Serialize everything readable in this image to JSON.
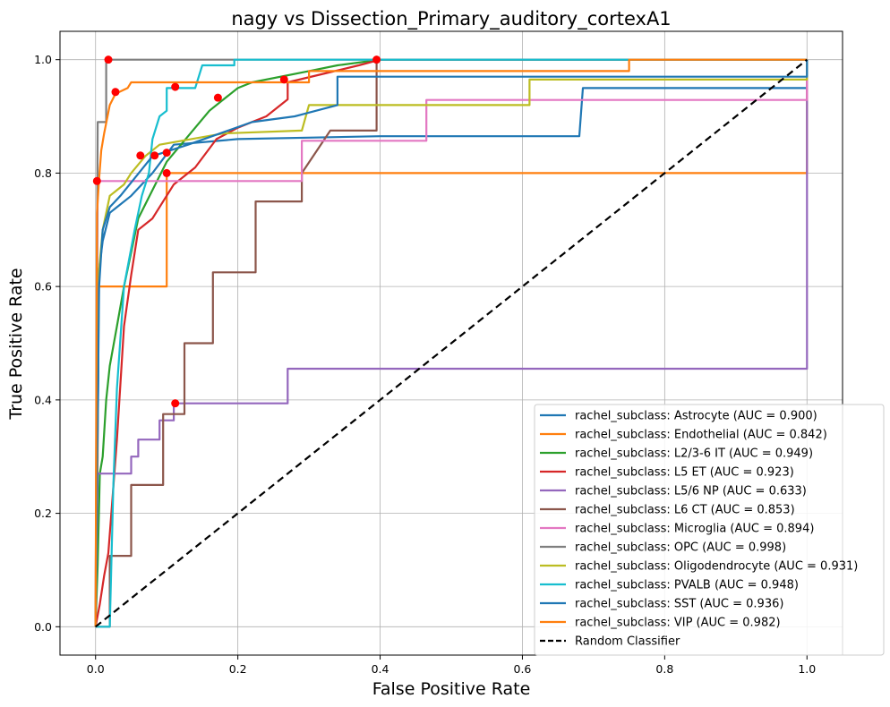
{
  "chart_data": {
    "type": "line",
    "title": "nagy vs Dissection_Primary_auditory_cortexA1",
    "xlabel": "False Positive Rate",
    "ylabel": "True Positive Rate",
    "xlim": [
      -0.05,
      1.05
    ],
    "ylim": [
      -0.05,
      1.05
    ],
    "xticks": [
      "0.0",
      "0.2",
      "0.4",
      "0.6",
      "0.8",
      "1.0"
    ],
    "yticks": [
      "0.0",
      "0.2",
      "0.4",
      "0.6",
      "0.8",
      "1.0"
    ],
    "grid": true,
    "legend_position": "lower right",
    "series": [
      {
        "name": "rachel_subclass: Astrocyte (AUC = 0.900)",
        "color": "#1f77b4",
        "points": [
          [
            0,
            0
          ],
          [
            0.004,
            0.45
          ],
          [
            0.004,
            0.62
          ],
          [
            0.01,
            0.68
          ],
          [
            0.02,
            0.73
          ],
          [
            0.05,
            0.76
          ],
          [
            0.08,
            0.8
          ],
          [
            0.11,
            0.85
          ],
          [
            0.2,
            0.86
          ],
          [
            0.4,
            0.865
          ],
          [
            0.68,
            0.865
          ],
          [
            0.685,
            0.95
          ],
          [
            1,
            0.95
          ],
          [
            1,
            1
          ]
        ]
      },
      {
        "name": "rachel_subclass: Endothelial (AUC = 0.842)",
        "color": "#ff7f0e",
        "points": [
          [
            0,
            0
          ],
          [
            0.003,
            0.3
          ],
          [
            0.003,
            0.6
          ],
          [
            0.1,
            0.6
          ],
          [
            0.1,
            0.8
          ],
          [
            1,
            0.8
          ],
          [
            1,
            1
          ]
        ]
      },
      {
        "name": "rachel_subclass: L2/3-6 IT (AUC = 0.949)",
        "color": "#2ca02c",
        "points": [
          [
            0,
            0
          ],
          [
            0.003,
            0.11
          ],
          [
            0.006,
            0.27
          ],
          [
            0.01,
            0.3
          ],
          [
            0.015,
            0.4
          ],
          [
            0.02,
            0.46
          ],
          [
            0.03,
            0.53
          ],
          [
            0.04,
            0.6
          ],
          [
            0.05,
            0.66
          ],
          [
            0.06,
            0.72
          ],
          [
            0.08,
            0.77
          ],
          [
            0.1,
            0.82
          ],
          [
            0.12,
            0.85
          ],
          [
            0.14,
            0.88
          ],
          [
            0.16,
            0.91
          ],
          [
            0.18,
            0.93
          ],
          [
            0.2,
            0.95
          ],
          [
            0.22,
            0.96
          ],
          [
            0.3,
            0.98
          ],
          [
            0.34,
            0.99
          ],
          [
            0.4,
            1
          ],
          [
            1,
            1
          ]
        ]
      },
      {
        "name": "rachel_subclass: L5 ET (AUC = 0.923)",
        "color": "#d62728",
        "points": [
          [
            0,
            0
          ],
          [
            0.006,
            0.04
          ],
          [
            0.012,
            0.09
          ],
          [
            0.018,
            0.13
          ],
          [
            0.03,
            0.33
          ],
          [
            0.04,
            0.53
          ],
          [
            0.05,
            0.62
          ],
          [
            0.06,
            0.7
          ],
          [
            0.08,
            0.72
          ],
          [
            0.11,
            0.78
          ],
          [
            0.14,
            0.81
          ],
          [
            0.17,
            0.86
          ],
          [
            0.2,
            0.88
          ],
          [
            0.24,
            0.9
          ],
          [
            0.27,
            0.93
          ],
          [
            0.27,
            0.96
          ],
          [
            0.32,
            0.975
          ],
          [
            0.37,
            0.99
          ],
          [
            0.4,
            1
          ],
          [
            1,
            1
          ]
        ]
      },
      {
        "name": "rachel_subclass: L5/6 NP (AUC = 0.633)",
        "color": "#9467bd",
        "points": [
          [
            0,
            0
          ],
          [
            0.003,
            0.27
          ],
          [
            0.05,
            0.27
          ],
          [
            0.05,
            0.3
          ],
          [
            0.06,
            0.3
          ],
          [
            0.06,
            0.33
          ],
          [
            0.09,
            0.33
          ],
          [
            0.09,
            0.364
          ],
          [
            0.11,
            0.364
          ],
          [
            0.11,
            0.394
          ],
          [
            0.27,
            0.394
          ],
          [
            0.27,
            0.455
          ],
          [
            1,
            0.455
          ],
          [
            1,
            1
          ]
        ]
      },
      {
        "name": "rachel_subclass: L6 CT (AUC = 0.853)",
        "color": "#8c564b",
        "points": [
          [
            0,
            0
          ],
          [
            0.02,
            0
          ],
          [
            0.02,
            0.125
          ],
          [
            0.05,
            0.125
          ],
          [
            0.05,
            0.25
          ],
          [
            0.095,
            0.25
          ],
          [
            0.095,
            0.375
          ],
          [
            0.125,
            0.375
          ],
          [
            0.125,
            0.5
          ],
          [
            0.165,
            0.5
          ],
          [
            0.165,
            0.625
          ],
          [
            0.225,
            0.625
          ],
          [
            0.225,
            0.75
          ],
          [
            0.29,
            0.75
          ],
          [
            0.29,
            0.8
          ],
          [
            0.33,
            0.875
          ],
          [
            0.395,
            0.875
          ],
          [
            0.395,
            1
          ],
          [
            1,
            1
          ]
        ]
      },
      {
        "name": "rachel_subclass: Microglia (AUC = 0.894)",
        "color": "#e377c2",
        "points": [
          [
            0,
            0
          ],
          [
            0.003,
            0.786
          ],
          [
            0.29,
            0.786
          ],
          [
            0.29,
            0.857
          ],
          [
            0.465,
            0.857
          ],
          [
            0.465,
            0.929
          ],
          [
            1,
            0.929
          ],
          [
            1,
            1
          ]
        ]
      },
      {
        "name": "rachel_subclass: OPC (AUC = 0.998)",
        "color": "#7f7f7f",
        "points": [
          [
            0,
            0
          ],
          [
            0.003,
            0.89
          ],
          [
            0.015,
            0.89
          ],
          [
            0.015,
            1
          ],
          [
            1,
            1
          ]
        ]
      },
      {
        "name": "rachel_subclass: Oligodendrocyte (AUC = 0.931)",
        "color": "#bcbd22",
        "points": [
          [
            0,
            0
          ],
          [
            0.005,
            0.63
          ],
          [
            0.01,
            0.7
          ],
          [
            0.02,
            0.76
          ],
          [
            0.04,
            0.78
          ],
          [
            0.05,
            0.8
          ],
          [
            0.07,
            0.83
          ],
          [
            0.09,
            0.85
          ],
          [
            0.18,
            0.87
          ],
          [
            0.29,
            0.875
          ],
          [
            0.3,
            0.92
          ],
          [
            0.61,
            0.92
          ],
          [
            0.61,
            0.965
          ],
          [
            1,
            0.965
          ],
          [
            1,
            1
          ]
        ]
      },
      {
        "name": "rachel_subclass: PVALB (AUC = 0.948)",
        "color": "#17becf",
        "points": [
          [
            0,
            0
          ],
          [
            0.02,
            0
          ],
          [
            0.022,
            0.1
          ],
          [
            0.025,
            0.25
          ],
          [
            0.03,
            0.42
          ],
          [
            0.04,
            0.6
          ],
          [
            0.055,
            0.7
          ],
          [
            0.065,
            0.76
          ],
          [
            0.075,
            0.8
          ],
          [
            0.08,
            0.86
          ],
          [
            0.09,
            0.9
          ],
          [
            0.1,
            0.91
          ],
          [
            0.1,
            0.95
          ],
          [
            0.14,
            0.95
          ],
          [
            0.15,
            0.99
          ],
          [
            0.195,
            0.99
          ],
          [
            0.195,
            1
          ],
          [
            1,
            1
          ]
        ]
      },
      {
        "name": "rachel_subclass: SST (AUC = 0.936)",
        "color": "#1f77b4",
        "points": [
          [
            0,
            0
          ],
          [
            0.005,
            0.6
          ],
          [
            0.01,
            0.7
          ],
          [
            0.02,
            0.74
          ],
          [
            0.035,
            0.76
          ],
          [
            0.08,
            0.83
          ],
          [
            0.13,
            0.85
          ],
          [
            0.22,
            0.89
          ],
          [
            0.28,
            0.9
          ],
          [
            0.34,
            0.92
          ],
          [
            0.34,
            0.97
          ],
          [
            1,
            0.97
          ],
          [
            1,
            1
          ]
        ]
      },
      {
        "name": "rachel_subclass: VIP (AUC = 0.982)",
        "color": "#ff7f0e",
        "points": [
          [
            0,
            0
          ],
          [
            0.002,
            0.73
          ],
          [
            0.005,
            0.79
          ],
          [
            0.008,
            0.84
          ],
          [
            0.012,
            0.87
          ],
          [
            0.02,
            0.92
          ],
          [
            0.028,
            0.94
          ],
          [
            0.045,
            0.95
          ],
          [
            0.05,
            0.96
          ],
          [
            0.3,
            0.96
          ],
          [
            0.3,
            0.98
          ],
          [
            0.75,
            0.98
          ],
          [
            0.75,
            1
          ],
          [
            1,
            1
          ]
        ]
      }
    ],
    "reference_line": {
      "name": "Random Classifier",
      "color": "#000000",
      "points": [
        [
          0,
          0
        ],
        [
          1,
          1
        ]
      ]
    },
    "markers": {
      "color": "#ff0000",
      "points": [
        [
          0.002,
          0.786
        ],
        [
          0.018,
          1.0
        ],
        [
          0.028,
          0.943
        ],
        [
          0.063,
          0.831
        ],
        [
          0.083,
          0.831
        ],
        [
          0.1,
          0.836
        ],
        [
          0.1,
          0.8
        ],
        [
          0.112,
          0.952
        ],
        [
          0.112,
          0.394
        ],
        [
          0.172,
          0.933
        ],
        [
          0.265,
          0.965
        ],
        [
          0.395,
          1.0
        ]
      ]
    }
  }
}
